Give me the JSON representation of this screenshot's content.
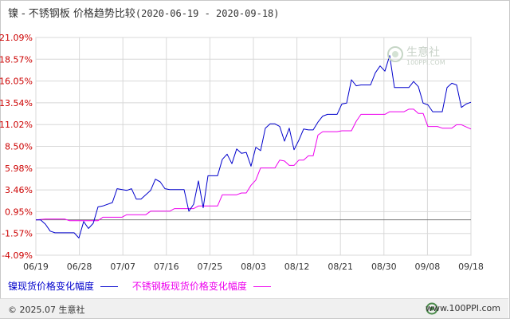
{
  "title": {
    "metal": "镍",
    "product": "不锈钢板",
    "text": "价格趋势比较",
    "date_range": "(2020-06-19 - 2020-09-18)"
  },
  "legend": [
    {
      "label": "镍现货价格变化幅度",
      "color": "#0000cc"
    },
    {
      "label": "不锈钢板现货价格变化幅度",
      "color": "#ee00ee"
    }
  ],
  "watermark": {
    "name": "生意社",
    "url": "100PPI.COM"
  },
  "footer": {
    "copyright": "© 2025.07 生意社",
    "site": "www.100PPI.com"
  },
  "colors": {
    "axis_label": "#cc0000",
    "grid": "#d8d8d8",
    "zero_line": "#777777"
  },
  "chart_data": {
    "type": "line",
    "title": "镍 - 不锈钢板 价格趋势比较(2020-06-19 - 2020-09-18)",
    "xlabel": "",
    "ylabel": "",
    "x_start": "2020-06-19",
    "x_end": "2020-09-18",
    "x_ticks": [
      "06/19",
      "06/28",
      "07/07",
      "07/16",
      "07/25",
      "08/03",
      "08/12",
      "08/21",
      "08/30",
      "09/08",
      "09/18"
    ],
    "y_ticks": [
      "21.09%",
      "18.57%",
      "16.05%",
      "13.54%",
      "11.02%",
      "8.50%",
      "5.98%",
      "3.46%",
      "0.95%",
      "-1.57%",
      "-4.09%"
    ],
    "ylim": [
      -4.09,
      21.09
    ],
    "grid": true,
    "legend_position": "bottom",
    "series": [
      {
        "name": "镍现货价格变化幅度",
        "color": "#0000cc",
        "points": [
          [
            "2020-06-19",
            0
          ],
          [
            "2020-06-20",
            0
          ],
          [
            "2020-06-21",
            -0.5
          ],
          [
            "2020-06-22",
            -1.3
          ],
          [
            "2020-06-23",
            -1.5
          ],
          [
            "2020-06-25",
            -1.5
          ],
          [
            "2020-06-26",
            -1.5
          ],
          [
            "2020-06-27",
            -1.5
          ],
          [
            "2020-06-28",
            -2.1
          ],
          [
            "2020-06-29",
            -0.2
          ],
          [
            "2020-06-30",
            -1.0
          ],
          [
            "2020-07-01",
            -0.4
          ],
          [
            "2020-07-02",
            1.5
          ],
          [
            "2020-07-03",
            1.6
          ],
          [
            "2020-07-05",
            2.0
          ],
          [
            "2020-07-06",
            3.6
          ],
          [
            "2020-07-08",
            3.4
          ],
          [
            "2020-07-09",
            3.6
          ],
          [
            "2020-07-10",
            2.4
          ],
          [
            "2020-07-11",
            2.4
          ],
          [
            "2020-07-13",
            3.4
          ],
          [
            "2020-07-14",
            4.7
          ],
          [
            "2020-07-15",
            4.4
          ],
          [
            "2020-07-16",
            3.6
          ],
          [
            "2020-07-17",
            3.5
          ],
          [
            "2020-07-19",
            3.5
          ],
          [
            "2020-07-20",
            3.5
          ],
          [
            "2020-07-21",
            1.0
          ],
          [
            "2020-07-22",
            1.8
          ],
          [
            "2020-07-23",
            4.5
          ],
          [
            "2020-07-24",
            1.4
          ],
          [
            "2020-07-25",
            5.1
          ],
          [
            "2020-07-26",
            5.1
          ],
          [
            "2020-07-27",
            5.1
          ],
          [
            "2020-07-28",
            7.0
          ],
          [
            "2020-07-29",
            7.6
          ],
          [
            "2020-07-30",
            6.5
          ],
          [
            "2020-07-31",
            8.2
          ],
          [
            "2020-08-01",
            7.7
          ],
          [
            "2020-08-02",
            7.8
          ],
          [
            "2020-08-03",
            6.2
          ],
          [
            "2020-08-04",
            8.4
          ],
          [
            "2020-08-05",
            8.0
          ],
          [
            "2020-08-06",
            10.6
          ],
          [
            "2020-08-07",
            11.1
          ],
          [
            "2020-08-08",
            11.1
          ],
          [
            "2020-08-09",
            10.8
          ],
          [
            "2020-08-10",
            9.1
          ],
          [
            "2020-08-11",
            10.6
          ],
          [
            "2020-08-12",
            8.1
          ],
          [
            "2020-08-13",
            9.2
          ],
          [
            "2020-08-14",
            10.5
          ],
          [
            "2020-08-15",
            10.4
          ],
          [
            "2020-08-16",
            10.4
          ],
          [
            "2020-08-17",
            11.3
          ],
          [
            "2020-08-18",
            12.0
          ],
          [
            "2020-08-19",
            12.2
          ],
          [
            "2020-08-20",
            12.2
          ],
          [
            "2020-08-21",
            12.2
          ],
          [
            "2020-08-22",
            13.4
          ],
          [
            "2020-08-23",
            13.5
          ],
          [
            "2020-08-24",
            16.2
          ],
          [
            "2020-08-25",
            15.5
          ],
          [
            "2020-08-26",
            15.6
          ],
          [
            "2020-08-27",
            15.6
          ],
          [
            "2020-08-28",
            15.6
          ],
          [
            "2020-08-29",
            17.0
          ],
          [
            "2020-08-30",
            17.8
          ],
          [
            "2020-08-31",
            17.2
          ],
          [
            "2020-09-01",
            19.0
          ],
          [
            "2020-09-02",
            15.3
          ],
          [
            "2020-09-03",
            15.3
          ],
          [
            "2020-09-04",
            15.3
          ],
          [
            "2020-09-05",
            15.3
          ],
          [
            "2020-09-06",
            16.0
          ],
          [
            "2020-09-07",
            15.4
          ],
          [
            "2020-09-08",
            13.5
          ],
          [
            "2020-09-09",
            13.3
          ],
          [
            "2020-09-10",
            12.5
          ],
          [
            "2020-09-11",
            12.5
          ],
          [
            "2020-09-12",
            12.5
          ],
          [
            "2020-09-13",
            15.3
          ],
          [
            "2020-09-14",
            15.8
          ],
          [
            "2020-09-15",
            15.6
          ],
          [
            "2020-09-16",
            13.0
          ],
          [
            "2020-09-17",
            13.4
          ],
          [
            "2020-09-18",
            13.6
          ]
        ]
      },
      {
        "name": "不锈钢板现货价格变化幅度",
        "color": "#ee00ee",
        "points": [
          [
            "2020-06-19",
            0
          ],
          [
            "2020-06-21",
            0.1
          ],
          [
            "2020-06-25",
            0.1
          ],
          [
            "2020-06-26",
            -0.1
          ],
          [
            "2020-07-02",
            -0.1
          ],
          [
            "2020-07-03",
            0.3
          ],
          [
            "2020-07-07",
            0.3
          ],
          [
            "2020-07-08",
            0.6
          ],
          [
            "2020-07-12",
            0.6
          ],
          [
            "2020-07-13",
            1.0
          ],
          [
            "2020-07-17",
            1.0
          ],
          [
            "2020-07-18",
            1.3
          ],
          [
            "2020-07-22",
            1.3
          ],
          [
            "2020-07-23",
            1.6
          ],
          [
            "2020-07-27",
            1.6
          ],
          [
            "2020-07-28",
            2.9
          ],
          [
            "2020-07-31",
            2.9
          ],
          [
            "2020-08-01",
            3.1
          ],
          [
            "2020-08-02",
            3.1
          ],
          [
            "2020-08-03",
            4.0
          ],
          [
            "2020-08-04",
            4.6
          ],
          [
            "2020-08-05",
            6.0
          ],
          [
            "2020-08-08",
            6.0
          ],
          [
            "2020-08-09",
            6.9
          ],
          [
            "2020-08-10",
            6.8
          ],
          [
            "2020-08-11",
            6.3
          ],
          [
            "2020-08-12",
            6.3
          ],
          [
            "2020-08-13",
            6.9
          ],
          [
            "2020-08-14",
            6.9
          ],
          [
            "2020-08-15",
            7.4
          ],
          [
            "2020-08-16",
            7.4
          ],
          [
            "2020-08-17",
            9.8
          ],
          [
            "2020-08-18",
            10.2
          ],
          [
            "2020-08-21",
            10.2
          ],
          [
            "2020-08-22",
            10.3
          ],
          [
            "2020-08-24",
            10.3
          ],
          [
            "2020-08-25",
            11.4
          ],
          [
            "2020-08-26",
            12.2
          ],
          [
            "2020-08-31",
            12.2
          ],
          [
            "2020-09-01",
            12.5
          ],
          [
            "2020-09-04",
            12.5
          ],
          [
            "2020-09-05",
            12.8
          ],
          [
            "2020-09-06",
            12.8
          ],
          [
            "2020-09-07",
            12.3
          ],
          [
            "2020-09-08",
            12.3
          ],
          [
            "2020-09-09",
            10.8
          ],
          [
            "2020-09-11",
            10.8
          ],
          [
            "2020-09-12",
            10.6
          ],
          [
            "2020-09-14",
            10.6
          ],
          [
            "2020-09-15",
            11.0
          ],
          [
            "2020-09-16",
            11.0
          ],
          [
            "2020-09-18",
            10.5
          ]
        ]
      }
    ]
  }
}
